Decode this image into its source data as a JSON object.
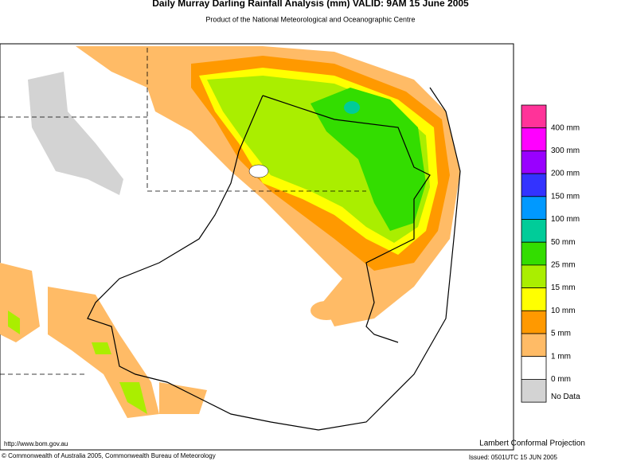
{
  "header": {
    "title": "Daily Murray Darling Rainfall Analysis (mm)  VALID: 9AM 15 June 2005",
    "subtitle": "Product of the National Meteorological and Oceanographic Centre"
  },
  "legend": {
    "colors": [
      "#ff3399",
      "#ff00ff",
      "#9900ff",
      "#3333ff",
      "#0099ff",
      "#00cc99",
      "#33dd00",
      "#aaee00",
      "#ffff00",
      "#ff9900",
      "#ffbb66",
      "#ffffff",
      "#d3d3d3"
    ],
    "labels": [
      "400 mm",
      "300 mm",
      "200 mm",
      "150 mm",
      "100 mm",
      "50 mm",
      "25 mm",
      "15 mm",
      "10 mm",
      "5 mm",
      "1 mm",
      "0 mm",
      "No Data"
    ]
  },
  "footer": {
    "url": "http://www.bom.gov.au",
    "copyright": "© Commonwealth of Australia 2005, Commonwealth Bureau of Meteorology",
    "projection": "Lambert Conformal Projection",
    "issued": "Issued: 0501UTC 15 JUN 2005"
  }
}
